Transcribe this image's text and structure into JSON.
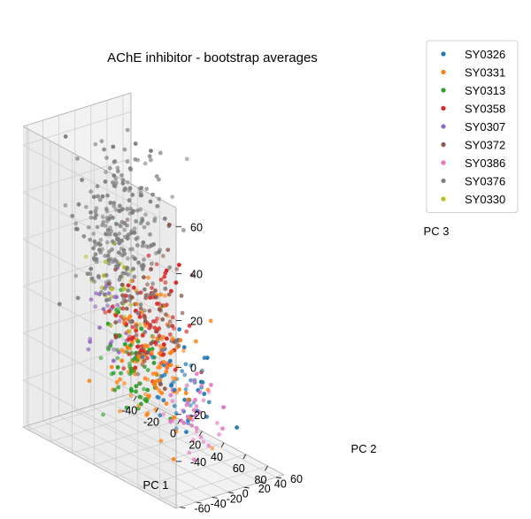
{
  "chart_data": {
    "type": "scatter",
    "title": "AChE inhibitor - bootstrap averages",
    "xlabel": "PC 1",
    "ylabel": "PC 2",
    "zlabel": "PC 3",
    "xlim": [
      -45,
      95
    ],
    "ylim": [
      -65,
      70
    ],
    "zlim": [
      -60,
      68
    ],
    "xticks": [
      -40,
      -20,
      0,
      20,
      40,
      60,
      80
    ],
    "yticks": [
      -60,
      -40,
      -20,
      0,
      20,
      40,
      60
    ],
    "zticks": [
      -40,
      -20,
      0,
      20,
      40,
      60
    ],
    "grid": true,
    "legend_position": "upper-right-outside",
    "series": [
      {
        "name": "SY0326",
        "color": "#1f77b4",
        "center": [
          50,
          5,
          -25
        ],
        "spread": [
          14,
          12,
          10
        ],
        "count": 60,
        "seed": 11
      },
      {
        "name": "SY0331",
        "color": "#ff7f0e",
        "center": [
          30,
          -5,
          -22
        ],
        "spread": [
          16,
          14,
          12
        ],
        "count": 120,
        "seed": 23
      },
      {
        "name": "SY0313",
        "color": "#2ca02c",
        "center": [
          25,
          -25,
          -20
        ],
        "spread": [
          14,
          10,
          12
        ],
        "count": 70,
        "seed": 37
      },
      {
        "name": "SY0358",
        "color": "#d62728",
        "center": [
          25,
          -5,
          -5
        ],
        "spread": [
          14,
          14,
          12
        ],
        "count": 90,
        "seed": 41
      },
      {
        "name": "SY0307",
        "color": "#9467bd",
        "center": [
          0,
          -25,
          -5
        ],
        "spread": [
          10,
          8,
          10
        ],
        "count": 30,
        "seed": 53
      },
      {
        "name": "SY0372",
        "color": "#8c564b",
        "center": [
          20,
          0,
          -5
        ],
        "spread": [
          14,
          14,
          14
        ],
        "count": 60,
        "seed": 67
      },
      {
        "name": "SY0386",
        "color": "#e377c2",
        "center": [
          50,
          20,
          -40
        ],
        "spread": [
          12,
          10,
          8
        ],
        "count": 40,
        "seed": 71
      },
      {
        "name": "SY0376",
        "color": "#7f7f7f",
        "center": [
          -10,
          10,
          25
        ],
        "spread": [
          16,
          18,
          18
        ],
        "count": 260,
        "seed": 83
      },
      {
        "name": "SY0330",
        "color": "#bcbd22",
        "center": [
          0,
          -10,
          0
        ],
        "spread": [
          10,
          10,
          10
        ],
        "count": 25,
        "seed": 97
      }
    ]
  }
}
